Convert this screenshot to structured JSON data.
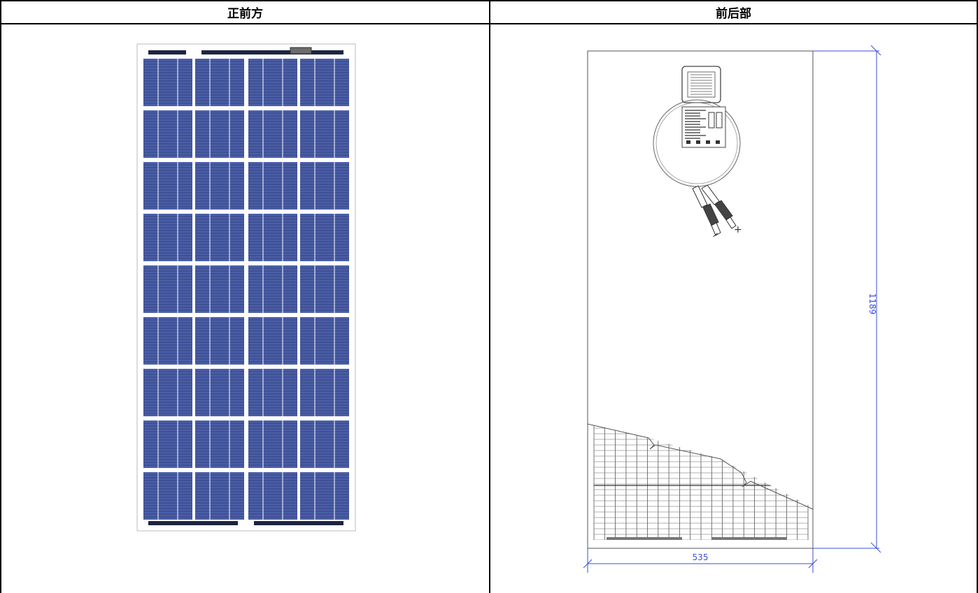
{
  "table": {
    "headers": {
      "front": "正前方",
      "back": "前后部"
    }
  },
  "back_drawing": {
    "dim_height": "1189",
    "dim_width": "535",
    "connector_minus": "−",
    "connector_plus": "+",
    "dimension_color": "#3a4fd8",
    "line_color": "#555555"
  },
  "front_drawing": {
    "cell_color": "#4a5ea8",
    "rows": 9,
    "columns": 4
  }
}
